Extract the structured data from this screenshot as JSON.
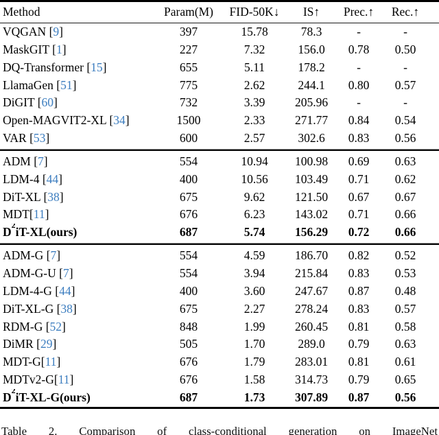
{
  "colors": {
    "citation_blue": "#3c7dbf",
    "text": "#000000",
    "background": "#ffffff"
  },
  "table": {
    "columns": [
      "Method",
      "Param(M)",
      "FID-50K↓",
      "IS↑",
      "Prec.↑",
      "Rec.↑"
    ],
    "sections": [
      {
        "rows": [
          {
            "method": "VQGAN",
            "cite": "9",
            "cite_space": true,
            "bold": false,
            "values": [
              "397",
              "15.78",
              "78.3",
              "-",
              "-"
            ]
          },
          {
            "method": "MaskGIT",
            "cite": "1",
            "cite_space": true,
            "bold": false,
            "values": [
              "227",
              "7.32",
              "156.0",
              "0.78",
              "0.50"
            ]
          },
          {
            "method": "DQ-Transformer",
            "cite": "15",
            "cite_space": true,
            "bold": false,
            "values": [
              "655",
              "5.11",
              "178.2",
              "-",
              "-"
            ]
          },
          {
            "method": "LlamaGen",
            "cite": "51",
            "cite_space": true,
            "bold": false,
            "values": [
              "775",
              "2.62",
              "244.1",
              "0.80",
              "0.57"
            ]
          },
          {
            "method": "DiGIT",
            "cite": "60",
            "cite_space": true,
            "bold": false,
            "values": [
              "732",
              "3.39",
              "205.96",
              "-",
              "-"
            ]
          },
          {
            "method": "Open-MAGVIT2-XL",
            "cite": "34",
            "cite_space": true,
            "bold": false,
            "values": [
              "1500",
              "2.33",
              "271.77",
              "0.84",
              "0.54"
            ]
          },
          {
            "method": "VAR",
            "cite": "53",
            "cite_space": true,
            "bold": false,
            "values": [
              "600",
              "2.57",
              "302.6",
              "0.83",
              "0.56"
            ]
          }
        ]
      },
      {
        "rows": [
          {
            "method": "ADM",
            "cite": "7",
            "cite_space": true,
            "bold": false,
            "values": [
              "554",
              "10.94",
              "100.98",
              "0.69",
              "0.63"
            ]
          },
          {
            "method": "LDM-4",
            "cite": "44",
            "cite_space": true,
            "bold": false,
            "values": [
              "400",
              "10.56",
              "103.49",
              "0.71",
              "0.62"
            ]
          },
          {
            "method": "DiT-XL",
            "cite": "38",
            "cite_space": true,
            "bold": false,
            "values": [
              "675",
              "9.62",
              "121.50",
              "0.67",
              "0.67"
            ]
          },
          {
            "method": "MDT",
            "cite": "11",
            "cite_space": false,
            "bold": false,
            "values": [
              "676",
              "6.23",
              "143.02",
              "0.71",
              "0.66"
            ]
          },
          {
            "method": "D^{2}iT-XL(ours)",
            "cite": null,
            "cite_space": false,
            "bold": true,
            "values": [
              "687",
              "5.74",
              "156.29",
              "0.72",
              "0.66"
            ]
          }
        ]
      },
      {
        "rows": [
          {
            "method": "ADM-G",
            "cite": "7",
            "cite_space": true,
            "bold": false,
            "values": [
              "554",
              "4.59",
              "186.70",
              "0.82",
              "0.52"
            ]
          },
          {
            "method": "ADM-G-U",
            "cite": "7",
            "cite_space": true,
            "bold": false,
            "values": [
              "554",
              "3.94",
              "215.84",
              "0.83",
              "0.53"
            ]
          },
          {
            "method": "LDM-4-G",
            "cite": "44",
            "cite_space": true,
            "bold": false,
            "values": [
              "400",
              "3.60",
              "247.67",
              "0.87",
              "0.48"
            ]
          },
          {
            "method": "DiT-XL-G",
            "cite": "38",
            "cite_space": true,
            "bold": false,
            "values": [
              "675",
              "2.27",
              "278.24",
              "0.83",
              "0.57"
            ]
          },
          {
            "method": "RDM-G",
            "cite": "52",
            "cite_space": true,
            "bold": false,
            "values": [
              "848",
              "1.99",
              "260.45",
              "0.81",
              "0.58"
            ]
          },
          {
            "method": "DiMR",
            "cite": "29",
            "cite_space": true,
            "bold": false,
            "values": [
              "505",
              "1.70",
              "289.0",
              "0.79",
              "0.63"
            ]
          },
          {
            "method": "MDT-G",
            "cite": "11",
            "cite_space": false,
            "bold": false,
            "values": [
              "676",
              "1.79",
              "283.01",
              "0.81",
              "0.61"
            ]
          },
          {
            "method": "MDTv2-G",
            "cite": "11",
            "cite_space": false,
            "bold": false,
            "values": [
              "676",
              "1.58",
              "314.73",
              "0.79",
              "0.65"
            ]
          },
          {
            "method": "D^{2}iT-XL-G(ours)",
            "cite": null,
            "cite_space": false,
            "bold": true,
            "values": [
              "687",
              "1.73",
              "307.89",
              "0.87",
              "0.56"
            ]
          }
        ]
      }
    ],
    "caption": "Table 2. Comparison of class-conditional generation on ImageNet"
  }
}
